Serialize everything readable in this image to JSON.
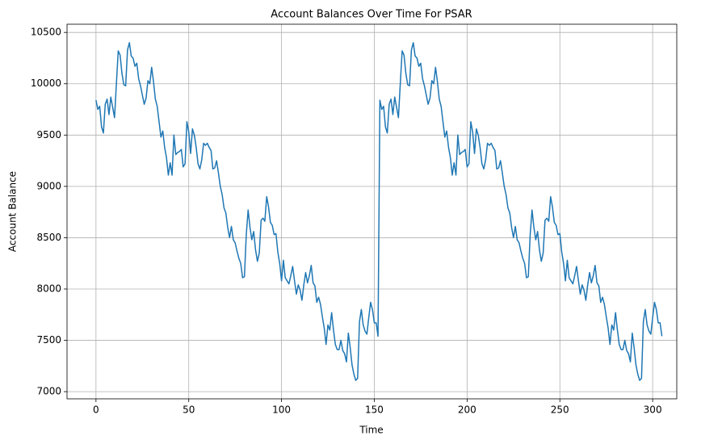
{
  "chart_data": {
    "type": "line",
    "title": "Account Balances Over Time For PSAR",
    "x_label": "Time",
    "y_label": "Account Balance",
    "x": [
      0,
      1,
      2,
      3,
      4,
      5,
      6,
      7,
      8,
      9,
      10,
      11,
      12,
      13,
      14,
      15,
      16,
      17,
      18,
      19,
      20,
      21,
      22,
      23,
      24,
      25,
      26,
      27,
      28,
      29,
      30,
      31,
      32,
      33,
      34,
      35,
      36,
      37,
      38,
      39,
      40,
      41,
      42,
      43,
      44,
      45,
      46,
      47,
      48,
      49,
      50,
      51,
      52,
      53,
      54,
      55,
      56,
      57,
      58,
      59,
      60,
      61,
      62,
      63,
      64,
      65,
      66,
      67,
      68,
      69,
      70,
      71,
      72,
      73,
      74,
      75,
      76,
      77,
      78,
      79,
      80,
      81,
      82,
      83,
      84,
      85,
      86,
      87,
      88,
      89,
      90,
      91,
      92,
      93,
      94,
      95,
      96,
      97,
      98,
      99,
      100,
      101,
      102,
      103,
      104,
      105,
      106,
      107,
      108,
      109,
      110,
      111,
      112,
      113,
      114,
      115,
      116,
      117,
      118,
      119,
      120,
      121,
      122,
      123,
      124,
      125,
      126,
      127,
      128,
      129,
      130,
      131,
      132,
      133,
      134,
      135,
      136,
      137,
      138,
      139,
      140,
      141,
      142,
      143,
      144,
      145,
      146,
      147,
      148,
      149,
      150,
      151,
      152,
      153,
      154,
      155,
      156,
      157,
      158,
      159,
      160,
      161,
      162,
      163,
      164,
      165,
      166,
      167,
      168,
      169,
      170,
      171,
      172,
      173,
      174,
      175,
      176,
      177,
      178,
      179,
      180,
      181,
      182,
      183,
      184,
      185,
      186,
      187,
      188,
      189,
      190,
      191,
      192,
      193,
      194,
      195,
      196,
      197,
      198,
      199,
      200,
      201,
      202,
      203,
      204,
      205,
      206,
      207,
      208,
      209,
      210,
      211,
      212,
      213,
      214,
      215,
      216,
      217,
      218,
      219,
      220,
      221,
      222,
      223,
      224,
      225,
      226,
      227,
      228,
      229,
      230,
      231,
      232,
      233,
      234,
      235,
      236,
      237,
      238,
      239,
      240,
      241,
      242,
      243,
      244,
      245,
      246,
      247,
      248,
      249,
      250,
      251,
      252,
      253,
      254,
      255,
      256,
      257,
      258,
      259,
      260,
      261,
      262,
      263,
      264,
      265,
      266,
      267,
      268,
      269,
      270,
      271,
      272,
      273,
      274,
      275,
      276,
      277,
      278,
      279,
      280,
      281,
      282,
      283,
      284,
      285,
      286,
      287,
      288,
      289,
      290,
      291,
      292,
      293,
      294,
      295,
      296,
      297,
      298,
      299,
      300,
      301,
      302,
      303,
      304,
      305
    ],
    "series": [
      {
        "name": "Account Balance",
        "color": "#1f77b4",
        "values": [
          9840,
          9750,
          9780,
          9580,
          9520,
          9800,
          9850,
          9700,
          9870,
          9770,
          9670,
          10000,
          10320,
          10280,
          10100,
          9990,
          9980,
          10330,
          10400,
          10270,
          10250,
          10170,
          10200,
          10050,
          9980,
          9890,
          9800,
          9860,
          10030,
          10000,
          10160,
          10020,
          9850,
          9780,
          9630,
          9480,
          9540,
          9380,
          9280,
          9110,
          9230,
          9110,
          9500,
          9310,
          9330,
          9340,
          9360,
          9190,
          9220,
          9630,
          9530,
          9320,
          9560,
          9500,
          9380,
          9220,
          9170,
          9260,
          9420,
          9400,
          9420,
          9380,
          9350,
          9170,
          9180,
          9250,
          9130,
          9000,
          8920,
          8790,
          8740,
          8600,
          8500,
          8610,
          8480,
          8450,
          8370,
          8300,
          8250,
          8110,
          8120,
          8530,
          8770,
          8600,
          8480,
          8560,
          8380,
          8270,
          8350,
          8670,
          8690,
          8660,
          8900,
          8800,
          8650,
          8620,
          8530,
          8540,
          8360,
          8250,
          8080,
          8280,
          8110,
          8080,
          8050,
          8130,
          8220,
          8080,
          7950,
          8040,
          7990,
          7890,
          8040,
          8160,
          8060,
          8130,
          8230,
          8060,
          8030,
          7870,
          7920,
          7850,
          7730,
          7620,
          7460,
          7650,
          7600,
          7770,
          7600,
          7460,
          7410,
          7410,
          7500,
          7400,
          7370,
          7290,
          7570,
          7430,
          7260,
          7170,
          7110,
          7130,
          7680,
          7800,
          7650,
          7590,
          7560,
          7720,
          7870,
          7800,
          7670,
          7670,
          7540,
          9840,
          9750,
          9780,
          9580,
          9520,
          9800,
          9850,
          9700,
          9870,
          9770,
          9670,
          10000,
          10320,
          10280,
          10100,
          9990,
          9980,
          10330,
          10400,
          10270,
          10250,
          10170,
          10200,
          10050,
          9980,
          9890,
          9800,
          9860,
          10030,
          10000,
          10160,
          10020,
          9850,
          9780,
          9630,
          9480,
          9540,
          9380,
          9280,
          9110,
          9230,
          9110,
          9500,
          9310,
          9330,
          9340,
          9360,
          9190,
          9220,
          9630,
          9530,
          9320,
          9560,
          9500,
          9380,
          9220,
          9170,
          9260,
          9420,
          9400,
          9420,
          9380,
          9350,
          9170,
          9180,
          9250,
          9130,
          9000,
          8920,
          8790,
          8740,
          8600,
          8500,
          8610,
          8480,
          8450,
          8370,
          8300,
          8250,
          8110,
          8120,
          8530,
          8770,
          8600,
          8480,
          8560,
          8380,
          8270,
          8350,
          8670,
          8690,
          8660,
          8900,
          8800,
          8650,
          8620,
          8530,
          8540,
          8360,
          8250,
          8080,
          8280,
          8110,
          8080,
          8050,
          8130,
          8220,
          8080,
          7950,
          8040,
          7990,
          7890,
          8040,
          8160,
          8060,
          8130,
          8230,
          8060,
          8030,
          7870,
          7920,
          7850,
          7730,
          7620,
          7460,
          7650,
          7600,
          7770,
          7600,
          7460,
          7410,
          7410,
          7500,
          7400,
          7370,
          7290,
          7570,
          7430,
          7260,
          7170,
          7110,
          7130,
          7680,
          7800,
          7650,
          7590,
          7560,
          7720,
          7870,
          7800,
          7670,
          7670,
          7540
        ]
      }
    ],
    "xlim": [
      -15.6,
      313
    ],
    "ylim": [
      6930,
      10580
    ],
    "xticks": [
      0,
      50,
      100,
      150,
      200,
      250,
      300
    ],
    "yticks": [
      7000,
      7500,
      8000,
      8500,
      9000,
      9500,
      10000,
      10500
    ],
    "grid": true
  }
}
